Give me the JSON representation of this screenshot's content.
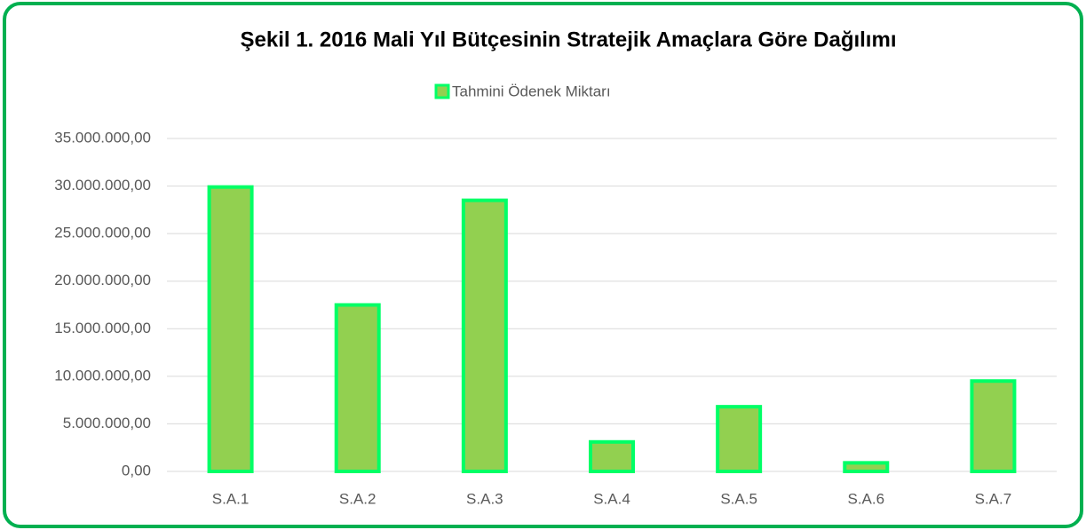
{
  "chart_data": {
    "type": "bar",
    "title": "Şekil 1. 2016 Mali  Yıl Bütçesinin Stratejik Amaçlara Göre Dağılımı",
    "categories": [
      "S.A.1",
      "S.A.2",
      "S.A.3",
      "S.A.4",
      "S.A.5",
      "S.A.6",
      "S.A.7"
    ],
    "series": [
      {
        "name": "Tahmini Ödenek Miktarı",
        "color": "#92d050",
        "values": [
          29900000,
          17500000,
          28500000,
          3100000,
          6800000,
          900000,
          9500000
        ]
      }
    ],
    "ylim": [
      0,
      35000000
    ],
    "yticks": [
      {
        "value": 0,
        "label": "0,00"
      },
      {
        "value": 5000000,
        "label": "5.000.000,00"
      },
      {
        "value": 10000000,
        "label": "10.000.000,00"
      },
      {
        "value": 15000000,
        "label": "15.000.000,00"
      },
      {
        "value": 20000000,
        "label": "20.000.000,00"
      },
      {
        "value": 25000000,
        "label": "25.000.000,00"
      },
      {
        "value": 30000000,
        "label": "30.000.000,00"
      },
      {
        "value": 35000000,
        "label": "35.000.000,00"
      }
    ],
    "grid": true,
    "legend": "top"
  }
}
